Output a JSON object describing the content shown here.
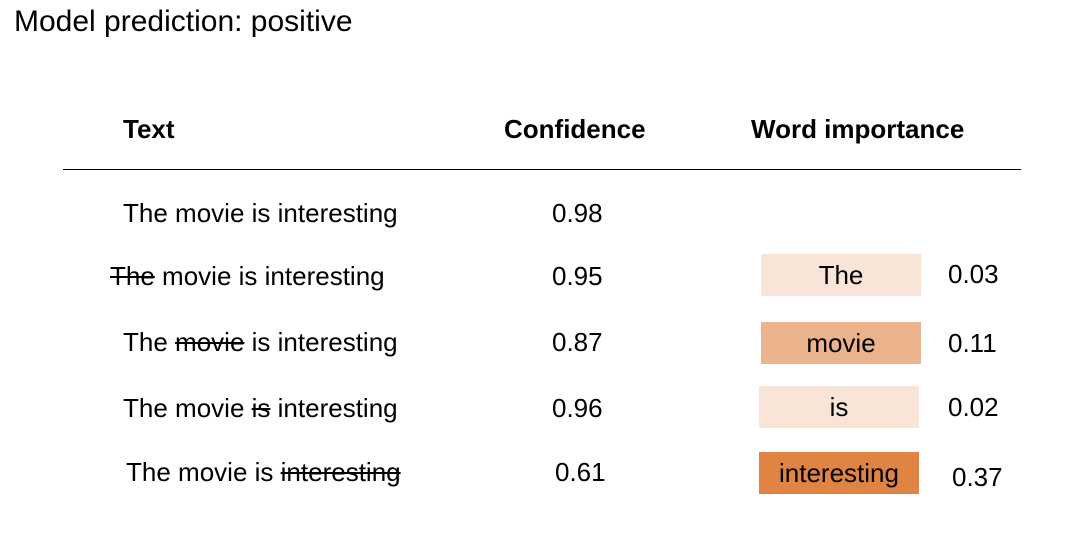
{
  "title": "Model prediction: positive",
  "headers": {
    "text": "Text",
    "confidence": "Confidence",
    "importance": "Word importance"
  },
  "colors": {
    "light": "#f8e5d8",
    "medium": "#ebb38b",
    "strong": "#e08443"
  },
  "rows": [
    {
      "words": [
        "The",
        "movie",
        "is",
        "interesting"
      ],
      "removed_index": -1,
      "confidence": "0.98",
      "importance_word": "",
      "importance_value": "",
      "box_color": ""
    },
    {
      "words": [
        "The",
        "movie",
        "is",
        "interesting"
      ],
      "removed_index": 0,
      "confidence": "0.95",
      "importance_word": "The",
      "importance_value": "0.03",
      "box_color": "#f8e5d8"
    },
    {
      "words": [
        "The",
        "movie",
        "is",
        "interesting"
      ],
      "removed_index": 1,
      "confidence": "0.87",
      "importance_word": "movie",
      "importance_value": "0.11",
      "box_color": "#ebb38b"
    },
    {
      "words": [
        "The",
        "movie",
        "is",
        "interesting"
      ],
      "removed_index": 2,
      "confidence": "0.96",
      "importance_word": "is",
      "importance_value": "0.02",
      "box_color": "#f8e5d8"
    },
    {
      "words": [
        "The",
        "movie",
        "is",
        "interesting"
      ],
      "removed_index": 3,
      "confidence": "0.61",
      "importance_word": "interesting",
      "importance_value": "0.37",
      "box_color": "#e08443"
    }
  ]
}
